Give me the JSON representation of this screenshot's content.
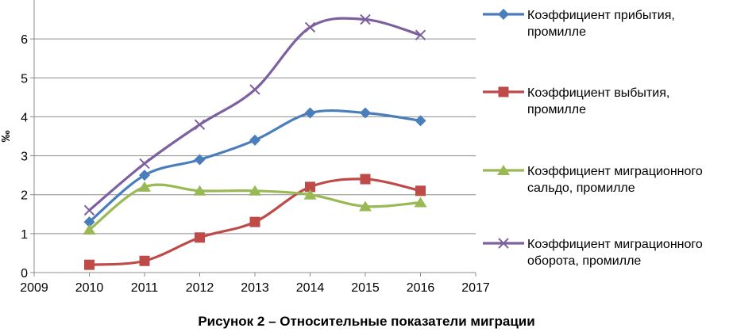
{
  "caption": "Рисунок 2 – Относительные показатели миграции",
  "chart_data": {
    "type": "line",
    "ylabel": "‰",
    "xlabel": "",
    "xlim": [
      2009,
      2017
    ],
    "ylim": [
      0,
      7
    ],
    "xticks": [
      "2009",
      "2010",
      "2011",
      "2012",
      "2013",
      "2014",
      "2015",
      "2016",
      "2017"
    ],
    "yticks": [
      "0",
      "1",
      "2",
      "3",
      "4",
      "5",
      "6"
    ],
    "grid": "horizontal",
    "legend_position": "right",
    "x": [
      2010,
      2011,
      2012,
      2013,
      2014,
      2015,
      2016
    ],
    "series": [
      {
        "name": "Коэффициент прибытия, промилле",
        "name_lines": [
          "Коэффициент прибытия,",
          "промилле"
        ],
        "color": "#4a7ebb",
        "marker": "diamond",
        "values": [
          1.3,
          2.5,
          2.9,
          3.4,
          4.1,
          4.1,
          3.9
        ]
      },
      {
        "name": "Коэффициент выбытия, промилле",
        "name_lines": [
          "Коэффициент выбытия,",
          "промилле"
        ],
        "color": "#be4b48",
        "marker": "square",
        "values": [
          0.2,
          0.3,
          0.9,
          1.3,
          2.2,
          2.4,
          2.1
        ]
      },
      {
        "name": "Коэффициент миграционного сальдо, промилле",
        "name_lines": [
          "Коэффициент миграционного",
          "сальдо, промилле"
        ],
        "color": "#98b954",
        "marker": "triangle",
        "values": [
          1.1,
          2.2,
          2.1,
          2.1,
          2.0,
          1.7,
          1.8
        ]
      },
      {
        "name": "Коэффициент миграционного оборота, промилле",
        "name_lines": [
          "Коэффициент миграционного",
          "оборота, промилле"
        ],
        "color": "#7d60a0",
        "marker": "x",
        "values": [
          1.6,
          2.8,
          3.8,
          4.7,
          6.3,
          6.5,
          6.1
        ]
      }
    ]
  }
}
